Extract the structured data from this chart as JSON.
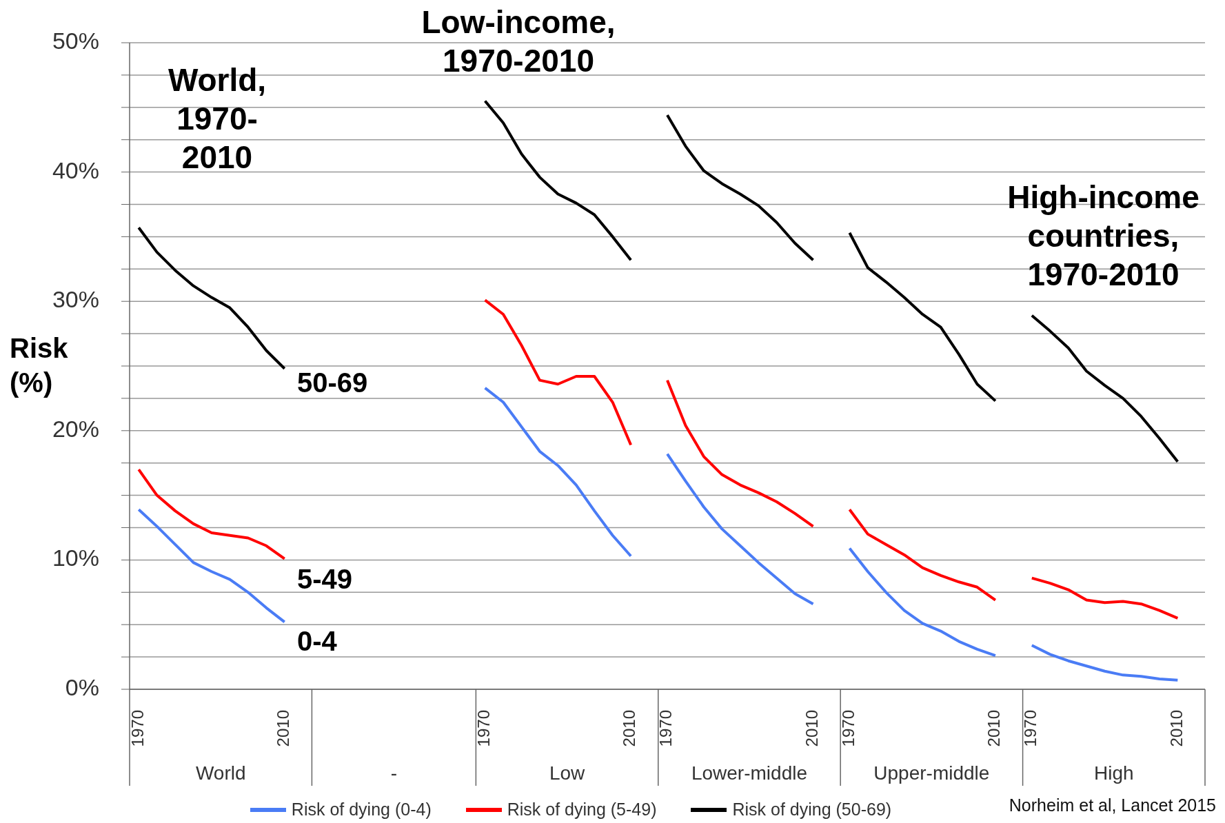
{
  "chart_data": {
    "type": "line",
    "ylabel": "Risk (%)",
    "categories": [
      "1970",
      null,
      null,
      null,
      null,
      null,
      null,
      null,
      "2010",
      null,
      null,
      null,
      null,
      null,
      null,
      null,
      null,
      null,
      null,
      "1970",
      null,
      null,
      null,
      null,
      null,
      null,
      null,
      "2010",
      null,
      "1970",
      null,
      null,
      null,
      null,
      null,
      null,
      null,
      "2010",
      null,
      "1970",
      null,
      null,
      null,
      null,
      null,
      null,
      null,
      "2010",
      null,
      "1970",
      null,
      null,
      null,
      null,
      null,
      null,
      null,
      "2010",
      null
    ],
    "series": [
      {
        "name": "Risk of dying (0-4)",
        "color": "#4a7cf5",
        "values": [
          13.9,
          12.6,
          11.2,
          9.8,
          9.1,
          8.5,
          7.5,
          6.3,
          5.2,
          null,
          null,
          null,
          null,
          null,
          null,
          null,
          null,
          null,
          null,
          23.3,
          22.2,
          20.3,
          18.4,
          17.3,
          15.8,
          13.8,
          11.9,
          10.3,
          null,
          18.2,
          16.1,
          14.1,
          12.4,
          11.1,
          9.8,
          8.6,
          7.4,
          6.6,
          null,
          10.9,
          9.1,
          7.5,
          6.1,
          5.1,
          4.5,
          3.7,
          3.1,
          2.6,
          null,
          3.4,
          2.7,
          2.2,
          1.8,
          1.4,
          1.1,
          1.0,
          0.8,
          0.7,
          null
        ]
      },
      {
        "name": "Risk of dying (5-49)",
        "color": "#ff0000",
        "values": [
          17.0,
          15.0,
          13.8,
          12.8,
          12.1,
          11.9,
          11.7,
          11.1,
          10.1,
          null,
          null,
          null,
          null,
          null,
          null,
          null,
          null,
          null,
          null,
          30.1,
          29.0,
          26.6,
          23.9,
          23.6,
          24.2,
          24.2,
          22.2,
          18.9,
          null,
          23.9,
          20.4,
          18.0,
          16.6,
          15.8,
          15.2,
          14.5,
          13.6,
          12.6,
          null,
          13.9,
          12.0,
          11.2,
          10.4,
          9.4,
          8.8,
          8.3,
          7.9,
          6.9,
          null,
          8.6,
          8.2,
          7.7,
          6.9,
          6.7,
          6.8,
          6.6,
          6.1,
          5.5,
          null
        ]
      },
      {
        "name": "Risk of dying (50-69)",
        "color": "#000000",
        "values": [
          35.7,
          33.8,
          32.4,
          31.2,
          30.3,
          29.5,
          28.0,
          26.2,
          24.8,
          null,
          null,
          null,
          null,
          null,
          null,
          null,
          null,
          null,
          null,
          45.5,
          43.8,
          41.4,
          39.6,
          38.3,
          37.6,
          36.7,
          35.0,
          33.2,
          null,
          44.4,
          42.0,
          40.1,
          39.1,
          38.3,
          37.4,
          36.1,
          34.5,
          33.2,
          null,
          35.3,
          32.6,
          31.5,
          30.3,
          29.0,
          28.0,
          25.9,
          23.6,
          22.3,
          null,
          28.9,
          27.7,
          26.4,
          24.6,
          23.5,
          22.5,
          21.1,
          19.4,
          17.6,
          null
        ]
      }
    ],
    "ylim": [
      0,
      50
    ],
    "yticks": [
      {
        "value": 0,
        "label": "0%"
      },
      {
        "value": 2.5,
        "label": null
      },
      {
        "value": 5,
        "label": null
      },
      {
        "value": 7.5,
        "label": null
      },
      {
        "value": 10,
        "label": "10%"
      },
      {
        "value": 12.5,
        "label": null
      },
      {
        "value": 15,
        "label": null
      },
      {
        "value": 17.5,
        "label": null
      },
      {
        "value": 20,
        "label": "20%"
      },
      {
        "value": 22.5,
        "label": null
      },
      {
        "value": 25,
        "label": null
      },
      {
        "value": 27.5,
        "label": null
      },
      {
        "value": 30,
        "label": "30%"
      },
      {
        "value": 32.5,
        "label": null
      },
      {
        "value": 35,
        "label": null
      },
      {
        "value": 37.5,
        "label": null
      },
      {
        "value": 40,
        "label": "40%"
      },
      {
        "value": 42.5,
        "label": null
      },
      {
        "value": 45,
        "label": null
      },
      {
        "value": 47.5,
        "label": null
      },
      {
        "value": 50,
        "label": "50%"
      }
    ],
    "grid": "y",
    "legend": "bottom",
    "line_style": "solid",
    "annotations": [
      "World, 1970-2010",
      "Low-income, 1970-2010",
      "High-income countries, 1970-2010",
      "50-69",
      "5-49",
      "0-4",
      "World",
      "-",
      "Low",
      "Lower-middle",
      "Upper-middle",
      "High",
      "Norheim et al, Lancet 2015"
    ]
  }
}
